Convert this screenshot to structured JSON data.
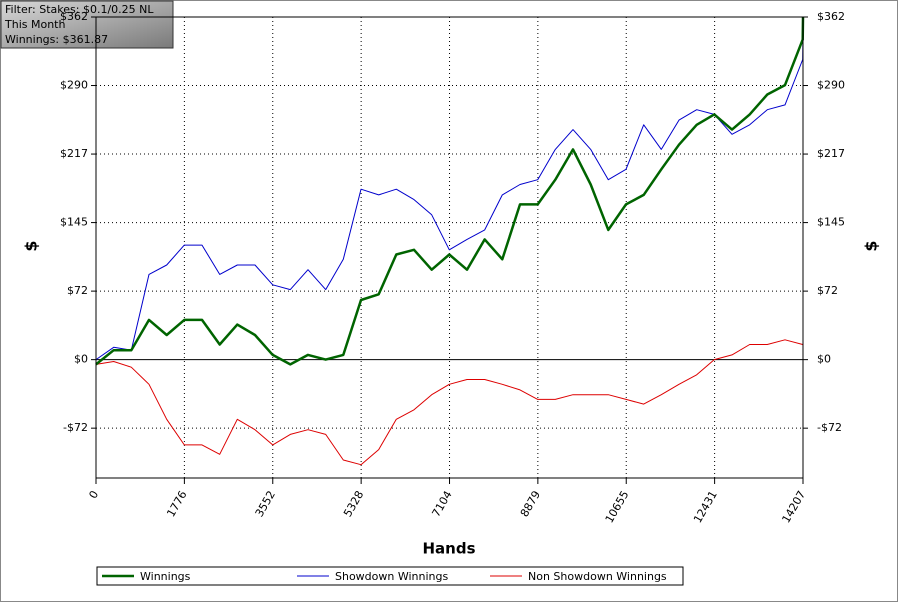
{
  "chart_data": {
    "type": "line",
    "annotations": [
      "Filter: Stakes: $0.1/0.25 NL",
      "This Month",
      "Winnings: $361.87"
    ],
    "x_label": "Hands",
    "y_label": "$",
    "x": [
      0,
      355,
      710,
      1065,
      1420,
      1775,
      2130,
      2485,
      2840,
      3195,
      3550,
      3905,
      4260,
      4615,
      4970,
      5325,
      5680,
      6035,
      6390,
      6745,
      7100,
      7455,
      7810,
      8165,
      8520,
      8875,
      9230,
      9585,
      9940,
      10295,
      10650,
      11005,
      11360,
      11715,
      12070,
      12425,
      12780,
      13135,
      13490,
      13845,
      14200,
      14207
    ],
    "series": [
      {
        "name": "Winnings",
        "color": "#006400",
        "values": [
          -5,
          10,
          10,
          42,
          26,
          42,
          42,
          16,
          37,
          26,
          5,
          -5,
          5,
          0,
          5,
          63,
          69,
          111,
          116,
          95,
          111,
          95,
          127,
          106,
          164,
          164,
          190,
          222,
          185,
          137,
          164,
          174,
          201,
          227,
          248,
          259,
          243,
          259,
          280,
          290,
          338,
          361.87
        ]
      },
      {
        "name": "Showdown Winnings",
        "color": "#0000cc",
        "values": [
          0,
          13,
          10,
          90,
          100,
          121,
          121,
          90,
          100,
          100,
          79,
          74,
          95,
          74,
          106,
          180,
          174,
          180,
          169,
          153,
          116,
          127,
          137,
          174,
          185,
          190,
          222,
          243,
          222,
          190,
          201,
          248,
          222,
          253,
          264,
          259,
          238,
          248,
          264,
          269,
          317,
          347
        ]
      },
      {
        "name": "Non Showdown Winnings",
        "color": "#dd0000",
        "values": [
          -5,
          -2,
          -8,
          -26,
          -63,
          -90,
          -90,
          -100,
          -63,
          -74,
          -90,
          -79,
          -74,
          -79,
          -106,
          -111,
          -95,
          -63,
          -53,
          -37,
          -26,
          -21,
          -21,
          -26,
          -32,
          -42,
          -42,
          -37,
          -37,
          -37,
          -42,
          -47,
          -37,
          -26,
          -16,
          0,
          5,
          16,
          16,
          21,
          16,
          15
        ]
      }
    ],
    "xlim": [
      0,
      14207
    ],
    "xticks": [
      0,
      1776,
      3552,
      5328,
      7104,
      8879,
      10655,
      12431,
      14207
    ],
    "ylim": [
      -125,
      361.87
    ],
    "yticks": [
      {
        "value": -72.37,
        "label": "-$72"
      },
      {
        "value": 0,
        "label": "$0"
      },
      {
        "value": 72.37,
        "label": "$72"
      },
      {
        "value": 144.75,
        "label": "$145"
      },
      {
        "value": 217.12,
        "label": "$217"
      },
      {
        "value": 289.5,
        "label": "$290"
      },
      {
        "value": 361.87,
        "label": "$362"
      }
    ],
    "grid": true,
    "legend": "bottom"
  }
}
